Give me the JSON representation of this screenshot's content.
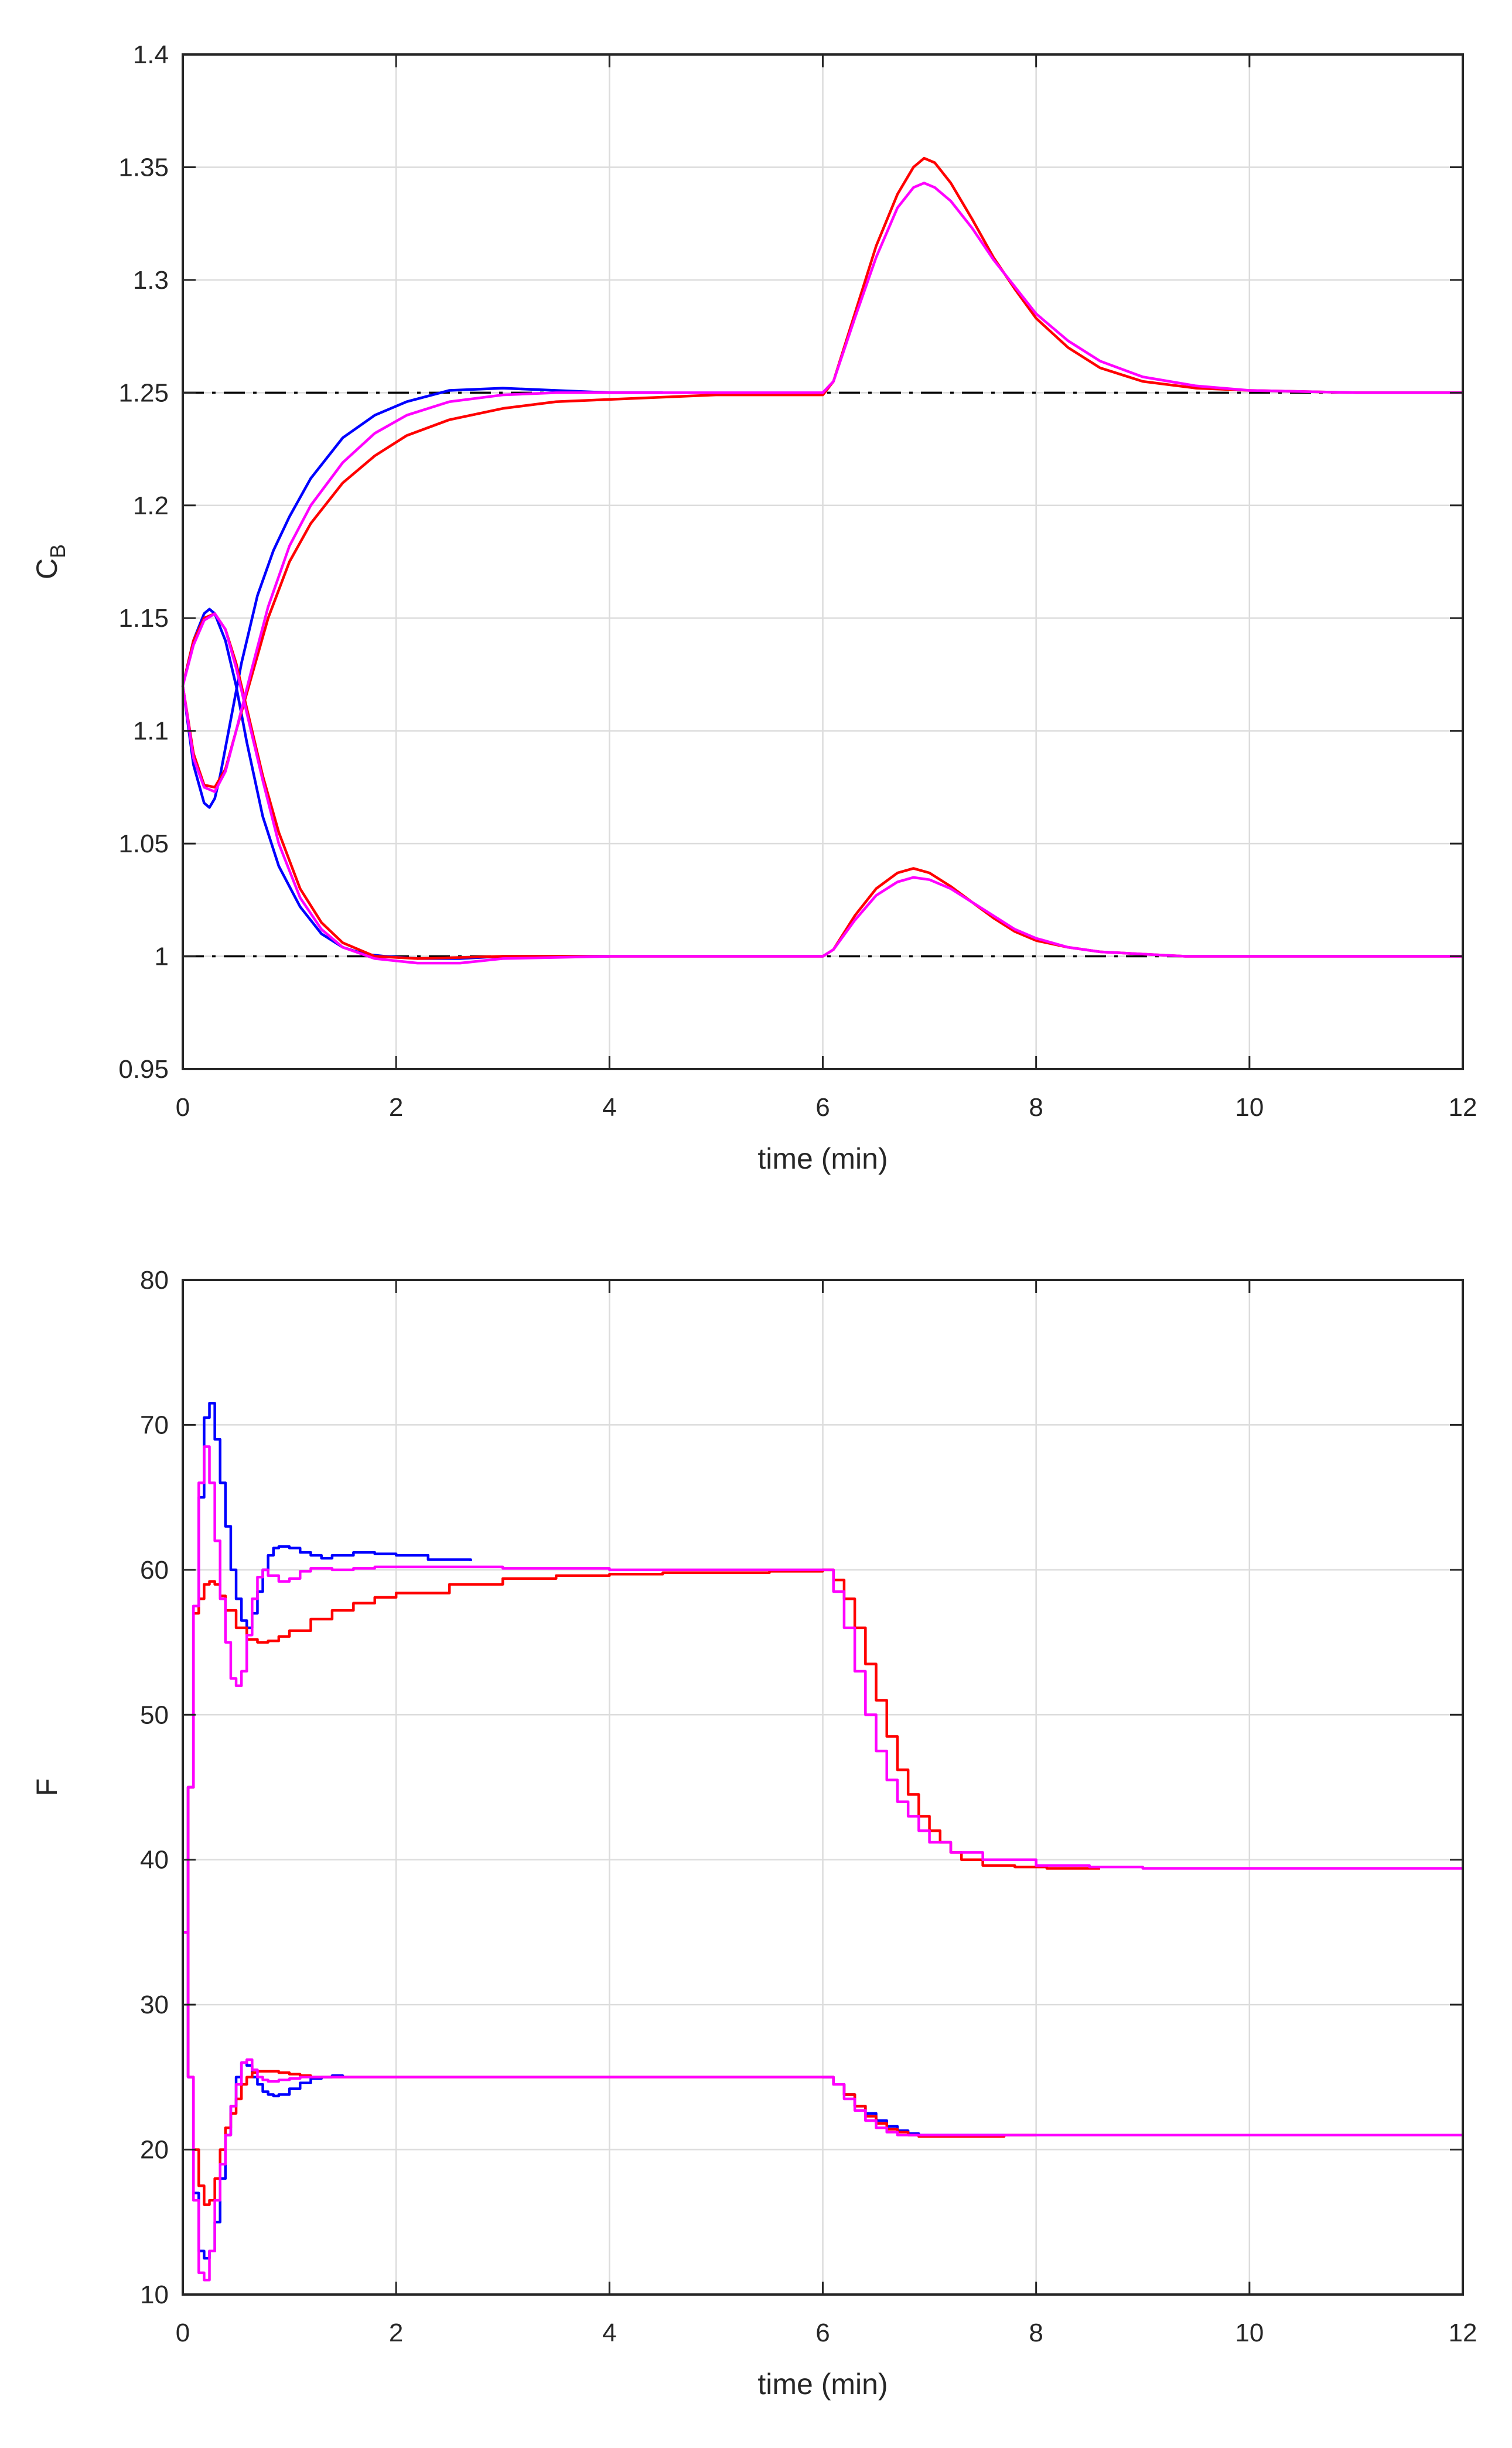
{
  "chart_data": [
    {
      "type": "line",
      "xlabel": "time (min)",
      "ylabel": "C",
      "ylabel_sub": "B",
      "xlim": [
        0,
        12
      ],
      "ylim": [
        0.95,
        1.4
      ],
      "xticks": [
        "0",
        "2",
        "4",
        "6",
        "8",
        "10",
        "12"
      ],
      "yticks": [
        "0.95",
        "1",
        "1.05",
        "1.1",
        "1.15",
        "1.2",
        "1.25",
        "1.3",
        "1.35",
        "1.4"
      ],
      "grid": true,
      "setpoints": [
        {
          "style": "dash-dot",
          "color": "#000000",
          "y": 1.25
        },
        {
          "style": "dash-dot",
          "color": "#000000",
          "y": 1.0
        }
      ],
      "series": [
        {
          "color": "#0000FF",
          "step": false,
          "x": [
            0,
            0.1,
            0.2,
            0.25,
            0.3,
            0.35,
            0.45,
            0.55,
            0.7,
            0.85,
            1.0,
            1.2,
            1.5,
            1.8,
            2.1,
            2.5,
            3.0,
            3.5,
            4.0,
            4.5
          ],
          "y": [
            1.12,
            1.085,
            1.068,
            1.066,
            1.07,
            1.08,
            1.105,
            1.13,
            1.16,
            1.18,
            1.195,
            1.212,
            1.23,
            1.24,
            1.246,
            1.251,
            1.252,
            1.251,
            1.25,
            1.25
          ]
        },
        {
          "color": "#0000FF",
          "step": false,
          "x": [
            0,
            0.1,
            0.2,
            0.25,
            0.3,
            0.4,
            0.5,
            0.6,
            0.75,
            0.9,
            1.1,
            1.3,
            1.5,
            1.7,
            1.9,
            2.2,
            2.6,
            3.0,
            3.5,
            4.0
          ],
          "y": [
            1.12,
            1.14,
            1.152,
            1.154,
            1.152,
            1.14,
            1.12,
            1.095,
            1.062,
            1.04,
            1.022,
            1.01,
            1.004,
            1.001,
            1.0,
            0.999,
            0.999,
            1.0,
            1.0,
            1.0
          ]
        },
        {
          "color": "#FF0000",
          "step": false,
          "x": [
            0,
            0.1,
            0.2,
            0.3,
            0.4,
            0.5,
            0.65,
            0.8,
            1.0,
            1.2,
            1.5,
            1.8,
            2.1,
            2.5,
            3.0,
            3.5,
            4.0,
            4.5,
            5.0,
            5.5,
            6.0,
            6.1,
            6.3,
            6.5,
            6.7,
            6.85,
            6.95,
            7.05,
            7.2,
            7.4,
            7.6,
            7.8,
            8.0,
            8.3,
            8.6,
            9.0,
            9.5,
            10.0,
            11.0,
            12.0
          ],
          "y": [
            1.12,
            1.09,
            1.076,
            1.075,
            1.083,
            1.1,
            1.125,
            1.15,
            1.175,
            1.192,
            1.21,
            1.222,
            1.231,
            1.238,
            1.243,
            1.246,
            1.247,
            1.248,
            1.249,
            1.249,
            1.249,
            1.255,
            1.285,
            1.315,
            1.338,
            1.35,
            1.354,
            1.352,
            1.343,
            1.327,
            1.31,
            1.296,
            1.283,
            1.27,
            1.261,
            1.255,
            1.252,
            1.251,
            1.25,
            1.25
          ]
        },
        {
          "color": "#FF0000",
          "step": false,
          "x": [
            0,
            0.1,
            0.2,
            0.3,
            0.4,
            0.5,
            0.6,
            0.75,
            0.9,
            1.1,
            1.3,
            1.5,
            1.8,
            2.2,
            3.0,
            4.0,
            5.0,
            6.0,
            6.1,
            6.3,
            6.5,
            6.7,
            6.85,
            7.0,
            7.2,
            7.4,
            7.6,
            7.8,
            8.0,
            8.3,
            8.6,
            9.0,
            9.4,
            10.0,
            12.0
          ],
          "y": [
            1.12,
            1.14,
            1.15,
            1.152,
            1.145,
            1.13,
            1.11,
            1.08,
            1.055,
            1.03,
            1.015,
            1.006,
            1.0,
            0.999,
            1.0,
            1.0,
            1.0,
            1.0,
            1.003,
            1.018,
            1.03,
            1.037,
            1.039,
            1.037,
            1.031,
            1.024,
            1.017,
            1.011,
            1.007,
            1.004,
            1.002,
            1.001,
            1.0,
            1.0,
            1.0
          ]
        },
        {
          "color": "#FF00FF",
          "step": false,
          "x": [
            0,
            0.1,
            0.2,
            0.3,
            0.4,
            0.5,
            0.65,
            0.8,
            1.0,
            1.2,
            1.5,
            1.8,
            2.1,
            2.5,
            3.0,
            3.5,
            4.0,
            5.0,
            6.0,
            6.1,
            6.3,
            6.5,
            6.7,
            6.85,
            6.95,
            7.05,
            7.2,
            7.4,
            7.6,
            7.8,
            8.0,
            8.3,
            8.6,
            9.0,
            9.5,
            10.0,
            11.0,
            12.0
          ],
          "y": [
            1.12,
            1.088,
            1.075,
            1.073,
            1.082,
            1.1,
            1.128,
            1.155,
            1.182,
            1.2,
            1.219,
            1.232,
            1.24,
            1.246,
            1.249,
            1.25,
            1.25,
            1.25,
            1.25,
            1.255,
            1.283,
            1.31,
            1.332,
            1.341,
            1.343,
            1.341,
            1.335,
            1.323,
            1.309,
            1.297,
            1.285,
            1.273,
            1.264,
            1.257,
            1.253,
            1.251,
            1.25,
            1.25
          ]
        },
        {
          "color": "#FF00FF",
          "step": false,
          "x": [
            0,
            0.1,
            0.2,
            0.3,
            0.4,
            0.5,
            0.6,
            0.75,
            0.9,
            1.1,
            1.3,
            1.5,
            1.8,
            2.2,
            2.6,
            3.0,
            4.0,
            5.0,
            6.0,
            6.1,
            6.3,
            6.5,
            6.7,
            6.85,
            7.0,
            7.2,
            7.4,
            7.6,
            7.8,
            8.0,
            8.3,
            8.6,
            9.0,
            9.4,
            10.0,
            12.0
          ],
          "y": [
            1.12,
            1.138,
            1.149,
            1.152,
            1.145,
            1.128,
            1.108,
            1.078,
            1.05,
            1.026,
            1.012,
            1.004,
            0.999,
            0.997,
            0.997,
            0.999,
            1.0,
            1.0,
            1.0,
            1.003,
            1.016,
            1.027,
            1.033,
            1.035,
            1.034,
            1.03,
            1.024,
            1.018,
            1.012,
            1.008,
            1.004,
            1.002,
            1.001,
            1.0,
            1.0,
            1.0
          ]
        }
      ]
    },
    {
      "type": "line",
      "xlabel": "time (min)",
      "ylabel": "F",
      "xlim": [
        0,
        12
      ],
      "ylim": [
        10,
        80
      ],
      "xticks": [
        "0",
        "2",
        "4",
        "6",
        "8",
        "10",
        "12"
      ],
      "yticks": [
        "10",
        "20",
        "30",
        "40",
        "50",
        "60",
        "70",
        "80"
      ],
      "grid": true,
      "series": [
        {
          "color": "#0000FF",
          "step": true,
          "x": [
            0,
            0.05,
            0.1,
            0.15,
            0.2,
            0.25,
            0.3,
            0.35,
            0.4,
            0.45,
            0.5,
            0.55,
            0.6,
            0.65,
            0.7,
            0.75,
            0.8,
            0.85,
            0.9,
            1.0,
            1.1,
            1.2,
            1.3,
            1.4,
            1.6,
            1.8,
            2.0,
            2.3,
            2.7
          ],
          "y": [
            35,
            45,
            57.5,
            65,
            70.5,
            71.5,
            69,
            66,
            63,
            60,
            58,
            56.5,
            56,
            57,
            58.5,
            60,
            61,
            61.5,
            61.6,
            61.5,
            61.2,
            61,
            60.8,
            61,
            61.2,
            61.1,
            61,
            60.7,
            60.6
          ]
        },
        {
          "color": "#0000FF",
          "step": true,
          "x": [
            0,
            0.05,
            0.1,
            0.15,
            0.2,
            0.25,
            0.3,
            0.35,
            0.4,
            0.45,
            0.5,
            0.55,
            0.6,
            0.65,
            0.7,
            0.75,
            0.8,
            0.85,
            0.9,
            1.0,
            1.1,
            1.2,
            1.3,
            1.4,
            1.5
          ],
          "y": [
            35,
            25,
            17,
            13,
            12.5,
            13,
            15,
            18,
            21,
            23,
            25,
            26,
            25.8,
            25,
            24.5,
            24,
            23.8,
            23.7,
            23.8,
            24.2,
            24.6,
            24.9,
            25,
            25.1,
            25
          ]
        },
        {
          "color": "#0000FF",
          "step": true,
          "x": [
            6.0,
            6.1,
            6.2,
            6.3,
            6.4,
            6.5,
            6.6,
            6.7,
            6.8,
            6.9,
            7.0,
            7.2,
            7.4,
            7.7
          ],
          "y": [
            25,
            24.5,
            23.8,
            23,
            22.5,
            22,
            21.6,
            21.3,
            21.1,
            21,
            21,
            21,
            21,
            21
          ]
        },
        {
          "color": "#FF0000",
          "step": true,
          "x": [
            0,
            0.05,
            0.1,
            0.15,
            0.2,
            0.25,
            0.3,
            0.35,
            0.4,
            0.5,
            0.6,
            0.7,
            0.8,
            0.9,
            1.0,
            1.2,
            1.4,
            1.6,
            1.8,
            2.0,
            2.5,
            3.0,
            3.5,
            4.0,
            4.5,
            5.0,
            5.5,
            6.0,
            6.1,
            6.2,
            6.3,
            6.4,
            6.5,
            6.6,
            6.7,
            6.8,
            6.9,
            7.0,
            7.1,
            7.2,
            7.3,
            7.5,
            7.8,
            8.1,
            8.6
          ],
          "y": [
            35,
            45,
            57,
            58,
            59,
            59.2,
            59,
            58.2,
            57.2,
            56,
            55.2,
            55,
            55.1,
            55.4,
            55.8,
            56.6,
            57.2,
            57.7,
            58.1,
            58.4,
            59,
            59.4,
            59.6,
            59.7,
            59.8,
            59.8,
            59.9,
            60,
            59.3,
            58,
            56,
            53.5,
            51,
            48.5,
            46.2,
            44.5,
            43,
            42,
            41.2,
            40.5,
            40,
            39.6,
            39.5,
            39.4,
            39.4
          ]
        },
        {
          "color": "#FF0000",
          "step": true,
          "x": [
            0,
            0.05,
            0.1,
            0.15,
            0.2,
            0.25,
            0.3,
            0.35,
            0.4,
            0.45,
            0.5,
            0.55,
            0.6,
            0.65,
            0.7,
            0.8,
            0.9,
            1.0,
            1.1,
            1.2,
            1.3,
            1.4,
            6.0,
            6.1,
            6.2,
            6.3,
            6.4,
            6.5,
            6.6,
            6.7,
            6.8,
            6.9,
            7.0,
            7.3,
            7.7,
            8.0
          ],
          "y": [
            35,
            25,
            20,
            17.5,
            16.2,
            16.5,
            18,
            20,
            21.5,
            22.5,
            23.5,
            24.5,
            25,
            25.3,
            25.4,
            25.4,
            25.3,
            25.2,
            25.1,
            25,
            25,
            25,
            25,
            24.5,
            23.8,
            23,
            22.3,
            21.8,
            21.4,
            21.2,
            21,
            20.9,
            20.9,
            20.9,
            21,
            21
          ]
        },
        {
          "color": "#FF00FF",
          "step": true,
          "x": [
            0,
            0.05,
            0.1,
            0.15,
            0.2,
            0.25,
            0.3,
            0.35,
            0.4,
            0.45,
            0.5,
            0.55,
            0.6,
            0.65,
            0.7,
            0.75,
            0.8,
            0.9,
            1.0,
            1.1,
            1.2,
            1.3,
            1.4,
            1.6,
            1.8,
            2.0,
            2.5,
            3.0,
            4.0,
            5.0,
            6.0,
            6.1,
            6.2,
            6.3,
            6.4,
            6.5,
            6.6,
            6.7,
            6.8,
            6.9,
            7.0,
            7.2,
            7.5,
            8.0,
            8.5,
            9.0,
            10.0,
            12.0
          ],
          "y": [
            35,
            45,
            57.5,
            66,
            68.5,
            66,
            62,
            58,
            55,
            52.5,
            52,
            53,
            55.5,
            58,
            59.5,
            60,
            59.6,
            59.2,
            59.4,
            59.9,
            60.1,
            60.1,
            60,
            60.1,
            60.2,
            60.2,
            60.2,
            60.1,
            60,
            60,
            60,
            58.5,
            56,
            53,
            50,
            47.5,
            45.5,
            44,
            43,
            42,
            41.2,
            40.5,
            40,
            39.6,
            39.5,
            39.4,
            39.4,
            39.4
          ]
        },
        {
          "color": "#FF00FF",
          "step": true,
          "x": [
            0,
            0.05,
            0.1,
            0.15,
            0.2,
            0.25,
            0.3,
            0.35,
            0.4,
            0.45,
            0.5,
            0.55,
            0.6,
            0.65,
            0.7,
            0.75,
            0.8,
            0.9,
            1.0,
            1.1,
            1.2,
            1.3,
            6.0,
            6.1,
            6.2,
            6.3,
            6.4,
            6.5,
            6.6,
            6.7,
            6.8,
            6.9,
            7.0,
            7.5,
            8.0,
            10.0,
            12.0
          ],
          "y": [
            35,
            25,
            16.5,
            11.5,
            11,
            13,
            16.5,
            19,
            21,
            23,
            24.5,
            26,
            26.2,
            25.5,
            25,
            24.8,
            24.7,
            24.8,
            24.9,
            25,
            25,
            25,
            25,
            24.5,
            23.5,
            22.7,
            22,
            21.5,
            21.2,
            21,
            21,
            21,
            21,
            21,
            21,
            21,
            21
          ]
        }
      ]
    }
  ]
}
